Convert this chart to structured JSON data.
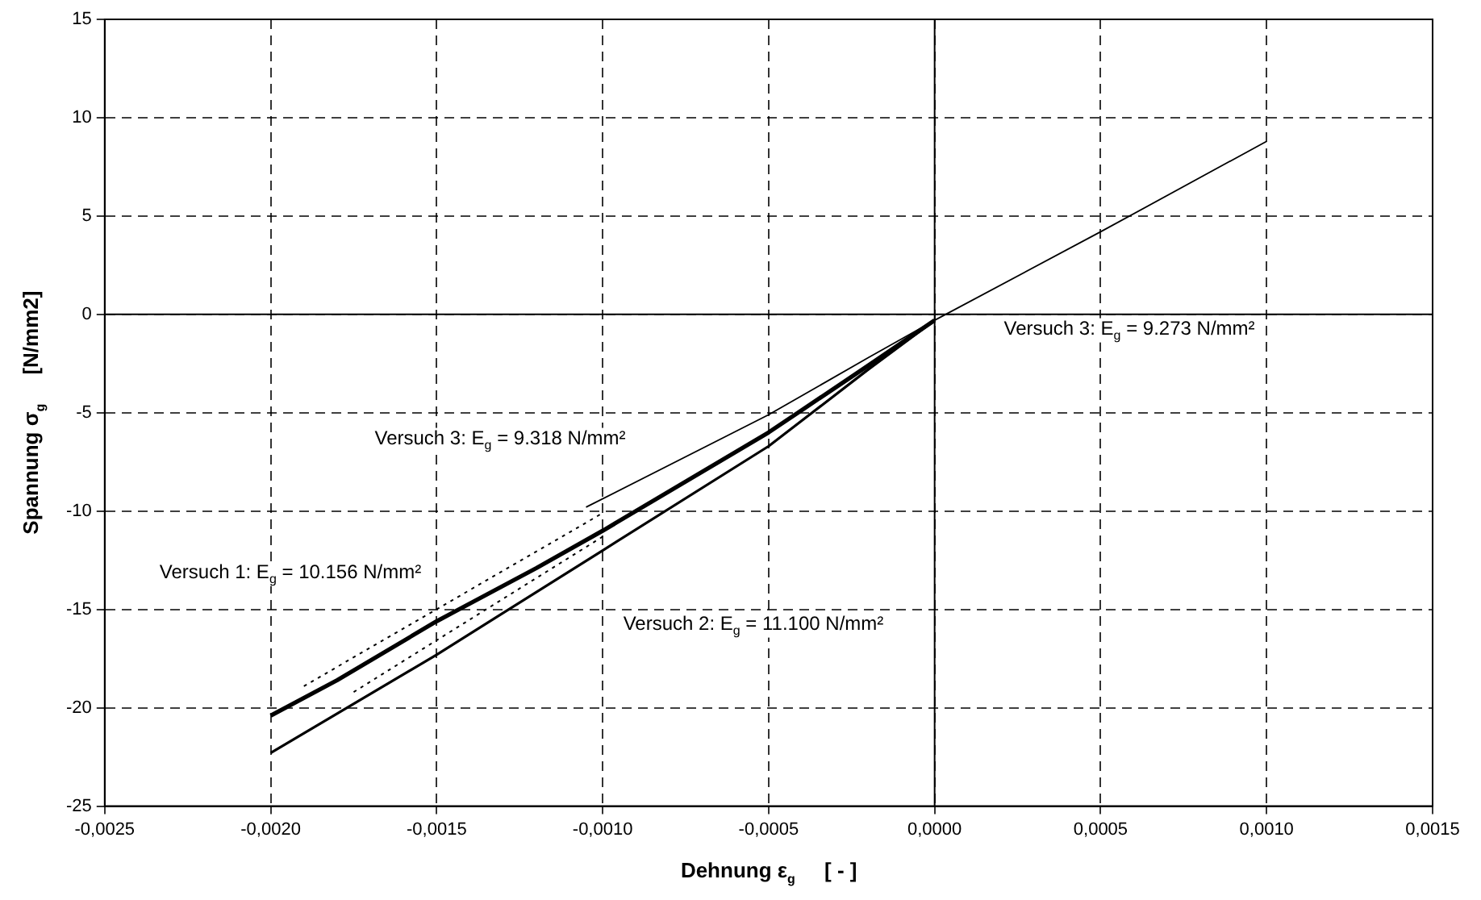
{
  "chart_data": {
    "type": "line",
    "xlabel": "Dehnung ε$_{g}$     [ - ]",
    "ylabel": "Spannung σ$_{g}$     [N/mm2]",
    "xlim": [
      -0.0025,
      0.0015
    ],
    "xticks": [
      {
        "value": -0.0025,
        "label": "-0,0025"
      },
      {
        "value": -0.002,
        "label": "-0,0020"
      },
      {
        "value": -0.0015,
        "label": "-0,0015"
      },
      {
        "value": -0.001,
        "label": "-0,0010"
      },
      {
        "value": -0.0005,
        "label": "-0,0005"
      },
      {
        "value": 0,
        "label": "0,0000"
      },
      {
        "value": 0.0005,
        "label": "0,0005"
      },
      {
        "value": 0.001,
        "label": "0,0010"
      },
      {
        "value": 0.0015,
        "label": "0,0015"
      }
    ],
    "ylim": [
      -25,
      15
    ],
    "yticks": [
      -25,
      -20,
      -15,
      -10,
      -5,
      0,
      5,
      10,
      15
    ],
    "grid": true,
    "marker": "none",
    "legend": false,
    "series": [
      {
        "color": "#000000",
        "x": [
          -0.002,
          -0.0018,
          -0.0015,
          -0.0012,
          -0.001,
          -0.0005,
          -0.0002,
          0
        ],
        "values": [
          -20.4,
          -18.6,
          -15.6,
          -12.9,
          -11.0,
          -6.0,
          -2.6,
          -0.3
        ]
      },
      {
        "color": "#000000",
        "x": [
          -0.002,
          -0.0015,
          -0.001,
          -0.0005,
          -0.0002,
          0
        ],
        "values": [
          -22.3,
          -17.3,
          -12.0,
          -6.7,
          -2.8,
          -0.3
        ]
      },
      {
        "color": "#000000",
        "x": [
          -0.00105,
          -0.0005,
          -0.0002,
          0,
          0.0005,
          0.001
        ],
        "values": [
          -9.8,
          -5.1,
          -2.2,
          -0.3,
          4.2,
          8.8
        ]
      },
      {
        "color": "#000000",
        "line_style": "dotted",
        "x": [
          -0.00175,
          -0.001
        ],
        "values": [
          -19.2,
          -11.3
        ]
      },
      {
        "color": "#000000",
        "line_style": "dotted",
        "x": [
          -0.0019,
          -0.001
        ],
        "values": [
          -18.9,
          -10.1
        ]
      }
    ],
    "annotations": [
      "Versuch 3: E$_{g}$ = 9.273 N/mm²",
      "Versuch 3: E$_{g}$ = 9.318 N/mm²",
      "Versuch 1: E$_{g}$ = 10.156 N/mm²",
      "Versuch 2: E$_{g}$ = 11.100 N/mm²"
    ]
  }
}
